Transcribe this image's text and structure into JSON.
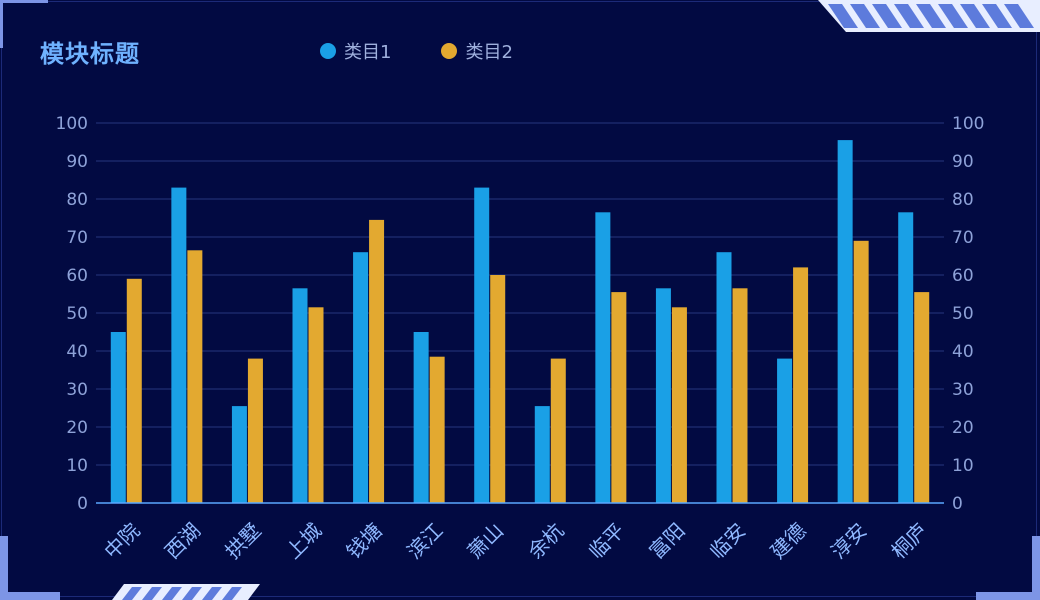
{
  "panel": {
    "title": "模块标题"
  },
  "legend": [
    {
      "label": "类目1",
      "color": "#1aa0e6"
    },
    {
      "label": "类目2",
      "color": "#e3a930"
    }
  ],
  "chart_data": {
    "type": "bar",
    "title": "模块标题",
    "categories": [
      "中院",
      "西湖",
      "拱墅",
      "上城",
      "钱塘",
      "滨江",
      "萧山",
      "余杭",
      "临平",
      "富阳",
      "临安",
      "建德",
      "淳安",
      "桐庐"
    ],
    "series": [
      {
        "name": "类目1",
        "color": "#1aa0e6",
        "values": [
          45,
          83,
          25.5,
          56.5,
          66,
          45,
          83,
          25.5,
          76.5,
          56.5,
          66,
          38,
          95.5,
          76.5
        ]
      },
      {
        "name": "类目2",
        "color": "#e3a930",
        "values": [
          59,
          66.5,
          38,
          51.5,
          74.5,
          38.5,
          60,
          38,
          55.5,
          51.5,
          56.5,
          62,
          69,
          55.5
        ]
      }
    ],
    "ylim": [
      0,
      100
    ],
    "yticks": [
      0,
      10,
      20,
      30,
      40,
      50,
      60,
      70,
      80,
      90,
      100
    ],
    "xlabel": "",
    "ylabel": "",
    "grid": true,
    "legend_position": "top"
  }
}
